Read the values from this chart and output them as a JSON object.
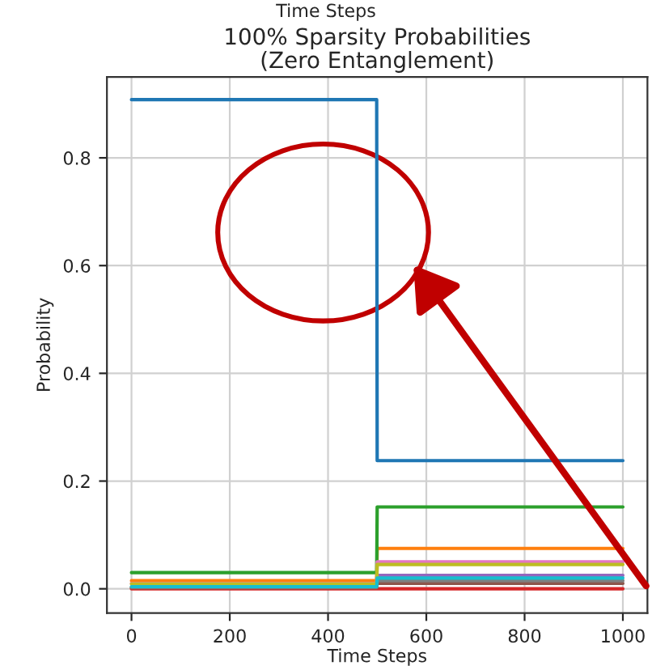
{
  "chart_data": {
    "type": "line",
    "title": "100% Sparsity Probabilities\n(Zero Entanglement)",
    "xlabel": "Time Steps",
    "ylabel": "Probability",
    "annotations": [
      "Time Steps"
    ],
    "x": [
      0,
      499,
      500,
      1000
    ],
    "series": [
      {
        "color": "#1f77b4",
        "values": [
          0.908,
          0.908,
          0.238,
          0.238
        ]
      },
      {
        "color": "#ff7f0e",
        "values": [
          0.015,
          0.015,
          0.075,
          0.075
        ]
      },
      {
        "color": "#2ca02c",
        "values": [
          0.03,
          0.03,
          0.152,
          0.152
        ]
      },
      {
        "color": "#d62728",
        "values": [
          0.0,
          0.0,
          0.0,
          0.0
        ]
      },
      {
        "color": "#9467bd",
        "values": [
          null,
          null,
          0.025,
          0.025
        ]
      },
      {
        "color": "#8c564b",
        "values": [
          0.002,
          0.002,
          0.01,
          0.01
        ]
      },
      {
        "color": "#e377c2",
        "values": [
          0.01,
          0.01,
          0.05,
          0.05
        ]
      },
      {
        "color": "#7f7f7f",
        "values": [
          0.003,
          0.003,
          0.015,
          0.015
        ]
      },
      {
        "color": "#bcbd22",
        "values": [
          0.009,
          0.009,
          0.045,
          0.045
        ]
      },
      {
        "color": "#17becf",
        "values": [
          0.004,
          0.004,
          0.02,
          0.02
        ]
      }
    ],
    "xlim": [
      -50,
      1050
    ],
    "ylim": [
      -0.045,
      0.95
    ],
    "xticks": [
      0,
      200,
      400,
      600,
      800,
      1000
    ],
    "yticks": [
      {
        "value": 0,
        "label": "0.0"
      },
      {
        "value": 0.2,
        "label": "0.2"
      },
      {
        "value": 0.4,
        "label": "0.4"
      },
      {
        "value": 0.6,
        "label": "0.6"
      },
      {
        "value": 0.8,
        "label": "0.8"
      }
    ],
    "grid": true,
    "legend": false
  }
}
